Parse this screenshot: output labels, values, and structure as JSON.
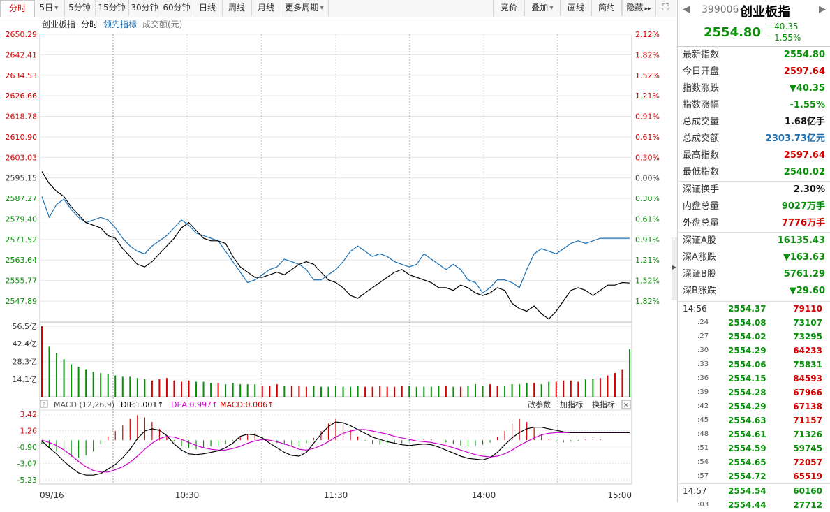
{
  "toolbar": {
    "items": [
      {
        "label": "分时",
        "active": true,
        "dropdown": false
      },
      {
        "label": "5日",
        "active": false,
        "dropdown": true
      },
      {
        "label": "5分钟",
        "active": false,
        "dropdown": false
      },
      {
        "label": "15分钟",
        "active": false,
        "dropdown": false
      },
      {
        "label": "30分钟",
        "active": false,
        "dropdown": false
      },
      {
        "label": "60分钟",
        "active": false,
        "dropdown": false
      },
      {
        "label": "日线",
        "active": false,
        "dropdown": false
      },
      {
        "label": "周线",
        "active": false,
        "dropdown": false
      },
      {
        "label": "月线",
        "active": false,
        "dropdown": false
      },
      {
        "label": "更多周期",
        "active": false,
        "dropdown": true
      }
    ],
    "right_items": [
      {
        "label": "竞价",
        "dropdown": false
      },
      {
        "label": "叠加",
        "dropdown": true
      },
      {
        "label": "画线",
        "dropdown": false
      },
      {
        "label": "简约",
        "dropdown": false
      },
      {
        "label": "隐藏",
        "dropdown": false
      }
    ],
    "more_arrow": "▸▸",
    "expand_icon": "expand-icon"
  },
  "legend": {
    "name": "创业板指",
    "mode": "分时",
    "lead": "领先指标",
    "amount": "成交额(元)"
  },
  "price_axis": {
    "left": [
      "2650.29",
      "2642.41",
      "2634.53",
      "2626.66",
      "2618.78",
      "2610.90",
      "2603.03",
      "2595.15",
      "2587.27",
      "2579.40",
      "2571.52",
      "2563.64",
      "2555.77",
      "2547.89"
    ],
    "right": [
      "2.12%",
      "1.82%",
      "1.52%",
      "1.21%",
      "0.91%",
      "0.61%",
      "0.30%",
      "0.00%",
      "0.30%",
      "0.61%",
      "0.91%",
      "1.21%",
      "1.52%",
      "1.82%"
    ]
  },
  "volume_axis": [
    "56.5亿",
    "42.4亿",
    "28.3亿",
    "14.1亿"
  ],
  "macd": {
    "title": "MACD (12,26,9)",
    "dif": "DIF:1.001↑",
    "dea": "DEA:0.997↑",
    "macd": "MACD:0.006↑",
    "params": "改参数",
    "add": "加指标",
    "swap": "换指标",
    "axis": [
      "3.42",
      "1.26",
      "-0.90",
      "-3.07",
      "-5.23"
    ]
  },
  "time_axis": [
    "09/16",
    "10:30",
    "11:30",
    "14:00",
    "15:00"
  ],
  "colors": {
    "up": "#d40000",
    "down": "#0a8f0a",
    "price": "#000000",
    "lead": "#1a6fb3",
    "dea": "#cc00cc",
    "grid": "#e6e6e6"
  },
  "chart_data": {
    "type": "line",
    "x_range": [
      "09:30",
      "15:00"
    ],
    "price": [
      2597.6,
      2593,
      2590,
      2588,
      2584,
      2581,
      2578,
      2577,
      2576,
      2573,
      2572,
      2568,
      2565,
      2562,
      2561,
      2563,
      2566,
      2569,
      2572,
      2576,
      2578,
      2575,
      2572,
      2571,
      2571,
      2570,
      2565,
      2561,
      2559,
      2557,
      2557,
      2558,
      2559,
      2558,
      2560,
      2562,
      2563,
      2562,
      2559,
      2556,
      2555,
      2553,
      2550,
      2549,
      2551,
      2553,
      2555,
      2557,
      2559,
      2560,
      2558,
      2557,
      2556,
      2555,
      2553,
      2553,
      2552,
      2554,
      2553,
      2551,
      2550,
      2551,
      2553,
      2552,
      2547,
      2545,
      2544,
      2546,
      2543,
      2541,
      2544,
      2548,
      2552,
      2553,
      2552,
      2550,
      2552,
      2554,
      2554,
      2555,
      2554.8
    ],
    "lead": [
      2588,
      2580,
      2585,
      2587,
      2583,
      2580,
      2578,
      2579,
      2580,
      2579,
      2576,
      2572,
      2569,
      2567,
      2566,
      2569,
      2571,
      2573,
      2576,
      2579,
      2577,
      2574,
      2573,
      2572,
      2571,
      2567,
      2563,
      2559,
      2555,
      2556,
      2558,
      2560,
      2561,
      2564,
      2563,
      2562,
      2560,
      2556,
      2556,
      2558,
      2560,
      2563,
      2567,
      2569,
      2567,
      2565,
      2566,
      2565,
      2563,
      2562,
      2561,
      2562,
      2566,
      2564,
      2562,
      2560,
      2562,
      2560,
      2556,
      2555,
      2551,
      2553,
      2556,
      2556,
      2555,
      2553,
      2560,
      2566,
      2568,
      2567,
      2566,
      2568,
      2570,
      2571,
      2570,
      2571,
      2572,
      2572,
      2572,
      2572,
      2572
    ],
    "volume": [
      56.5,
      40,
      35,
      30,
      26,
      24,
      22,
      20,
      19,
      18,
      17,
      16,
      16,
      15,
      14,
      13,
      14,
      15,
      13,
      12,
      13,
      12,
      12,
      11,
      11,
      10,
      11,
      10,
      10,
      10,
      9,
      9,
      10,
      9,
      9,
      9,
      8,
      9,
      8,
      8,
      9,
      8,
      8,
      9,
      8,
      8,
      9,
      8,
      8,
      9,
      9,
      8,
      8,
      8,
      9,
      9,
      8,
      8,
      9,
      10,
      9,
      10,
      9,
      9,
      10,
      10,
      11,
      11,
      10,
      12,
      12,
      13,
      13,
      12,
      14,
      14,
      15,
      17,
      19,
      22,
      38
    ],
    "macd_hist": [
      -0.5,
      -1,
      -1.5,
      -2,
      -2.2,
      -2.3,
      -2,
      -1.5,
      -0.5,
      0.5,
      1.2,
      2,
      2.8,
      3.3,
      3,
      2.4,
      1.5,
      0.6,
      -0.2,
      -0.8,
      -1,
      -1.2,
      -1,
      -0.8,
      -0.7,
      -0.5,
      -0.2,
      0.4,
      0.8,
      0.9,
      0.5,
      0,
      -0.4,
      -0.6,
      -0.7,
      -0.8,
      -0.4,
      0.3,
      1.2,
      2.2,
      2.8,
      2.2,
      1.4,
      0.5,
      -0.1,
      -0.5,
      -0.6,
      -0.5,
      -0.4,
      -0.4,
      -0.2,
      0,
      0.2,
      0.1,
      0,
      -0.3,
      -0.5,
      -0.7,
      -0.8,
      -0.7,
      -0.6,
      -0.3,
      0.4,
      1.2,
      2.2,
      2.8,
      2.4,
      1.6,
      0.8,
      0.2,
      -0.2,
      -0.3,
      -0.2,
      -0.1,
      0.1,
      0.1,
      0.1,
      0,
      0,
      0,
      0.006
    ],
    "dif": [
      -0.1,
      -1,
      -1.8,
      -2.8,
      -3.6,
      -4.3,
      -4.6,
      -4.6,
      -4.4,
      -3.8,
      -3.2,
      -2.3,
      -1.2,
      0.2,
      1.2,
      1.5,
      1.3,
      0.6,
      -0.5,
      -1.3,
      -1.8,
      -1.9,
      -1.8,
      -1.6,
      -1.4,
      -1,
      -0.4,
      0.5,
      0.8,
      0.7,
      0.3,
      -0.4,
      -1,
      -1.6,
      -2,
      -2.1,
      -1.6,
      -0.4,
      0.8,
      1.8,
      2.4,
      2.3,
      1.9,
      1.4,
      0.9,
      0.4,
      0.1,
      -0.2,
      -0.4,
      -0.6,
      -0.7,
      -0.6,
      -0.5,
      -0.6,
      -0.9,
      -1.3,
      -1.7,
      -2.1,
      -2.4,
      -2.5,
      -2.6,
      -2.3,
      -1.6,
      -0.6,
      0.3,
      1,
      1.5,
      1.7,
      1.7,
      1.5,
      1.3,
      1.1,
      1,
      1,
      1,
      1,
      1,
      1,
      1,
      1,
      1.001
    ],
    "dea": [
      0,
      -0.3,
      -0.7,
      -1.3,
      -2,
      -2.8,
      -3.5,
      -4,
      -4.2,
      -4.2,
      -3.9,
      -3.5,
      -2.9,
      -2.1,
      -1.2,
      -0.4,
      0.2,
      0.5,
      0.4,
      0.1,
      -0.3,
      -0.7,
      -1,
      -1.2,
      -1.3,
      -1.3,
      -1.1,
      -0.8,
      -0.4,
      -0.1,
      0.1,
      0,
      -0.2,
      -0.5,
      -0.8,
      -1.2,
      -1.3,
      -1.1,
      -0.7,
      -0.2,
      0.4,
      0.9,
      1.2,
      1.4,
      1.4,
      1.2,
      1,
      0.8,
      0.5,
      0.3,
      0.1,
      -0.1,
      -0.2,
      -0.3,
      -0.5,
      -0.7,
      -1,
      -1.3,
      -1.6,
      -1.9,
      -2.1,
      -2.2,
      -2.1,
      -1.8,
      -1.3,
      -0.7,
      -0.2,
      0.3,
      0.7,
      0.9,
      1,
      1,
      1,
      1,
      1,
      1,
      1,
      1,
      1,
      1,
      0.997
    ]
  },
  "quote": {
    "code": "399006",
    "name": "创业板指",
    "price": "2554.80",
    "change": "- 40.35",
    "pct": "- 1.55%",
    "prev_icon": "prev-arrow-icon",
    "next_icon": "next-arrow-icon"
  },
  "stats": [
    {
      "label": "最新指数",
      "value": "2554.80",
      "color": "green"
    },
    {
      "label": "今日开盘",
      "value": "2597.64",
      "color": "red"
    },
    {
      "label": "指数涨跌",
      "value": "▼40.35",
      "color": "green"
    },
    {
      "label": "指数涨幅",
      "value": "-1.55%",
      "color": "green"
    },
    {
      "label": "总成交量",
      "value": "1.68亿手",
      "color": "black"
    },
    {
      "label": "总成交额",
      "value": "2303.73亿元",
      "color": "blue"
    },
    {
      "label": "最高指数",
      "value": "2597.64",
      "color": "red"
    },
    {
      "label": "最低指数",
      "value": "2540.02",
      "color": "green"
    }
  ],
  "stats2": [
    {
      "label": "深证换手",
      "value": "2.30%",
      "color": "black"
    },
    {
      "label": "内盘总量",
      "value": "9027万手",
      "color": "green"
    },
    {
      "label": "外盘总量",
      "value": "7776万手",
      "color": "red"
    }
  ],
  "stats3": [
    {
      "label": "深证A股",
      "value": "16135.43",
      "color": "green"
    },
    {
      "label": "深A涨跌",
      "value": "▼163.63",
      "color": "green"
    },
    {
      "label": "深证B股",
      "value": "5761.29",
      "color": "green"
    },
    {
      "label": "深B涨跌",
      "value": "▼29.60",
      "color": "green"
    }
  ],
  "ticks": [
    {
      "time": "14:56",
      "price": "2554.37",
      "vol": "79110",
      "vc": "red",
      "full": true
    },
    {
      "time": ":24",
      "price": "2554.08",
      "vol": "73107",
      "vc": "green",
      "full": false
    },
    {
      "time": ":27",
      "price": "2554.02",
      "vol": "73295",
      "vc": "green",
      "full": false
    },
    {
      "time": ":30",
      "price": "2554.29",
      "vol": "64233",
      "vc": "red",
      "full": false
    },
    {
      "time": ":33",
      "price": "2554.06",
      "vol": "75831",
      "vc": "green",
      "full": false
    },
    {
      "time": ":36",
      "price": "2554.15",
      "vol": "84593",
      "vc": "red",
      "full": false
    },
    {
      "time": ":39",
      "price": "2554.28",
      "vol": "67966",
      "vc": "red",
      "full": false
    },
    {
      "time": ":42",
      "price": "2554.29",
      "vol": "67138",
      "vc": "red",
      "full": false
    },
    {
      "time": ":45",
      "price": "2554.63",
      "vol": "71157",
      "vc": "red",
      "full": false
    },
    {
      "time": ":48",
      "price": "2554.61",
      "vol": "71326",
      "vc": "green",
      "full": false
    },
    {
      "time": ":51",
      "price": "2554.59",
      "vol": "59745",
      "vc": "green",
      "full": false
    },
    {
      "time": ":54",
      "price": "2554.65",
      "vol": "72057",
      "vc": "red",
      "full": false
    },
    {
      "time": ":57",
      "price": "2554.72",
      "vol": "65519",
      "vc": "red",
      "full": false
    },
    {
      "time": "14:57",
      "price": "2554.54",
      "vol": "60160",
      "vc": "green",
      "full": true
    },
    {
      "time": ":03",
      "price": "2554.44",
      "vol": "27712",
      "vc": "green",
      "full": false
    }
  ]
}
